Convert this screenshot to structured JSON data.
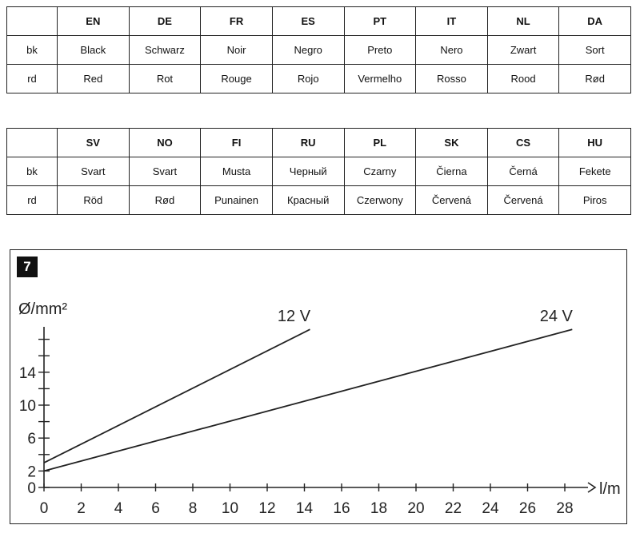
{
  "tables": [
    {
      "header": [
        "",
        "EN",
        "DE",
        "FR",
        "ES",
        "PT",
        "IT",
        "NL",
        "DA"
      ],
      "rows": [
        [
          "bk",
          "Black",
          "Schwarz",
          "Noir",
          "Negro",
          "Preto",
          "Nero",
          "Zwart",
          "Sort"
        ],
        [
          "rd",
          "Red",
          "Rot",
          "Rouge",
          "Rojo",
          "Vermelho",
          "Rosso",
          "Rood",
          "Rød"
        ]
      ]
    },
    {
      "header": [
        "",
        "SV",
        "NO",
        "FI",
        "RU",
        "PL",
        "SK",
        "CS",
        "HU"
      ],
      "rows": [
        [
          "bk",
          "Svart",
          "Svart",
          "Musta",
          "Черный",
          "Czarny",
          "Čierna",
          "Černá",
          "Fekete"
        ],
        [
          "rd",
          "Röd",
          "Rød",
          "Punainen",
          "Красный",
          "Czerwony",
          "Červená",
          "Červená",
          "Piros"
        ]
      ]
    }
  ],
  "figure": {
    "number": "7"
  },
  "chart_data": {
    "type": "line",
    "xlabel": "l/m",
    "ylabel": "Ø/mm²",
    "xlim": [
      0,
      28
    ],
    "ylim": [
      0,
      20
    ],
    "x_ticks": [
      0,
      2,
      4,
      6,
      8,
      10,
      12,
      14,
      16,
      18,
      20,
      22,
      24,
      26,
      28
    ],
    "y_tick_labels": [
      0,
      2,
      6,
      10,
      14
    ],
    "y_tick_marks": [
      0,
      2,
      4,
      6,
      8,
      10,
      12,
      14,
      16,
      18
    ],
    "grid": false,
    "series": [
      {
        "name": "12 V",
        "x": [
          0,
          14.3
        ],
        "y": [
          3.0,
          19.2
        ]
      },
      {
        "name": "24 V",
        "x": [
          0,
          28.4
        ],
        "y": [
          2.0,
          19.2
        ]
      }
    ]
  }
}
